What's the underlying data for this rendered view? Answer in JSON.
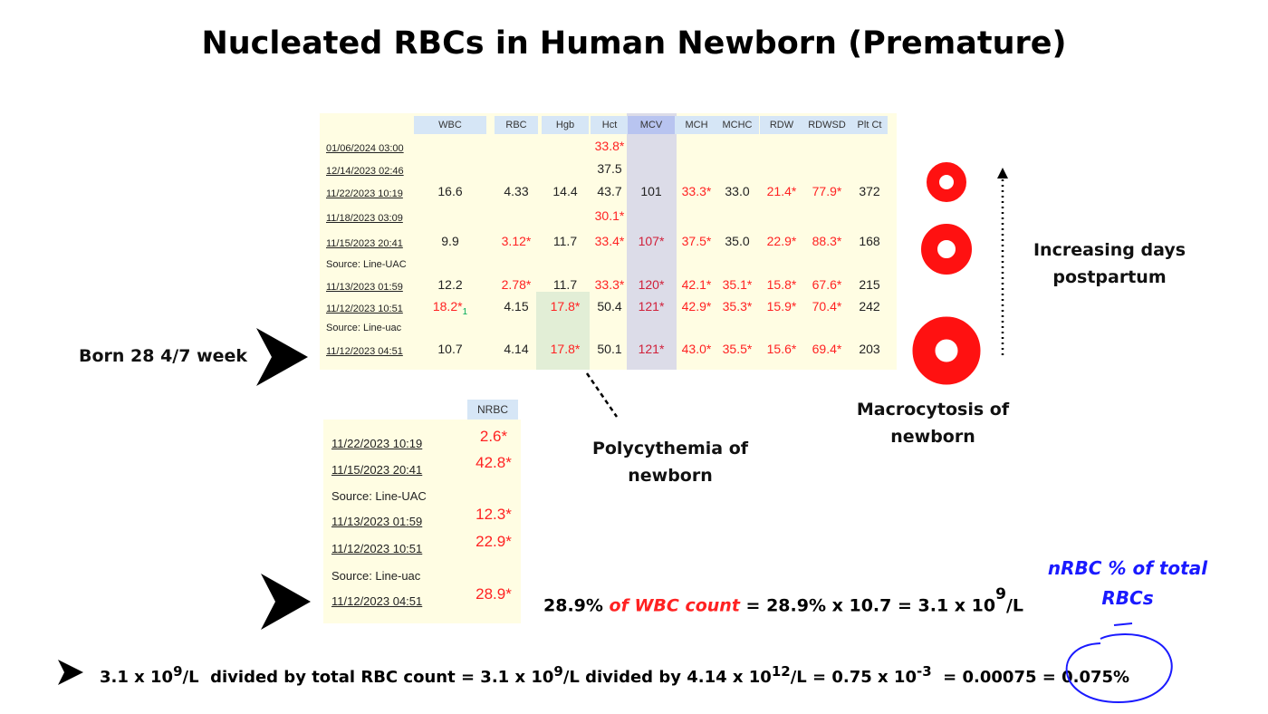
{
  "title": "Nucleated RBCs in Human Newborn (Premature)",
  "cbc": {
    "headers": [
      "WBC",
      "RBC",
      "Hgb",
      "Hct",
      "MCV",
      "MCH",
      "MCHC",
      "RDW",
      "RDWSD",
      "Plt Ct"
    ],
    "rows": [
      {
        "date": "01/06/2024 03:00",
        "values": [
          "",
          "",
          "",
          "33.8*",
          "",
          "",
          "",
          "",
          "",
          ""
        ]
      },
      {
        "date": "12/14/2023 02:46",
        "values": [
          "",
          "",
          "",
          "37.5",
          "",
          "",
          "",
          "",
          "",
          ""
        ]
      },
      {
        "date": "11/22/2023 10:19",
        "values": [
          "16.6",
          "4.33",
          "14.4",
          "43.7",
          "101",
          "33.3*",
          "33.0",
          "21.4*",
          "77.9*",
          "372"
        ]
      },
      {
        "date": "11/18/2023 03:09",
        "values": [
          "",
          "",
          "",
          "30.1*",
          "",
          "",
          "",
          "",
          "",
          ""
        ]
      },
      {
        "date": "11/15/2023 20:41",
        "values": [
          "9.9",
          "3.12*",
          "11.7",
          "33.4*",
          "107*",
          "37.5*",
          "35.0",
          "22.9*",
          "88.3*",
          "168"
        ]
      },
      {
        "source": "Source: Line-UAC"
      },
      {
        "date": "11/13/2023 01:59",
        "values": [
          "12.2",
          "2.78*",
          "11.7",
          "33.3*",
          "120*",
          "42.1*",
          "35.1*",
          "15.8*",
          "67.6*",
          "215"
        ]
      },
      {
        "date": "11/12/2023 10:51",
        "values": [
          "18.2*",
          "4.15",
          "17.8*",
          "50.4",
          "121*",
          "42.9*",
          "35.3*",
          "15.9*",
          "70.4*",
          "242"
        ],
        "footnote": "1"
      },
      {
        "source": "Source: Line-uac"
      },
      {
        "date": "11/12/2023 04:51",
        "values": [
          "10.7",
          "4.14",
          "17.8*",
          "50.1",
          "121*",
          "43.0*",
          "35.5*",
          "15.6*",
          "69.4*",
          "203"
        ]
      }
    ]
  },
  "nrbc": {
    "header": "NRBC",
    "rows": [
      {
        "date": "11/22/2023 10:19",
        "value": "2.6*"
      },
      {
        "date": "11/15/2023 20:41",
        "value": "42.8*"
      },
      {
        "source": "Source: Line-UAC"
      },
      {
        "date": "11/13/2023 01:59",
        "value": "12.3*"
      },
      {
        "date": "11/12/2023 10:51",
        "value": "22.9*"
      },
      {
        "source": "Source: Line-uac"
      },
      {
        "date": "11/12/2023 04:51",
        "value": "28.9*"
      }
    ]
  },
  "labels": {
    "born": "Born 28 4/7 week",
    "polycythemia_1": "Polycythemia of",
    "polycythemia_2": "newborn",
    "macrocytosis_1": "Macrocytosis of",
    "macrocytosis_2": "newborn",
    "increasing_1": "Increasing days",
    "increasing_2": "postpartum",
    "nrbc_pct_1": "nRBC  % of total",
    "nrbc_pct_2": "RBCs"
  },
  "formula1": {
    "a": "28.9% ",
    "b": "of WBC count",
    "c": " = 28.9% x 10.7 = 3.1 x 10",
    "exp": "9",
    "d": "/L"
  },
  "formula2": {
    "p1": "3.1 x 10",
    "e1": "9",
    "p2": "/L  divided by total RBC count = 3.1 x 10",
    "e2": "9",
    "p3": "/L divided by 4.14 x 10",
    "e3": "12",
    "p4": "/L = 0.75 x 10",
    "e4": "-3",
    "p5": "  = 0.00075 = 0.075%"
  },
  "colors": {
    "abnormal": "#ff2222",
    "ring": "#ff1111",
    "blue": "#1a1aff"
  }
}
